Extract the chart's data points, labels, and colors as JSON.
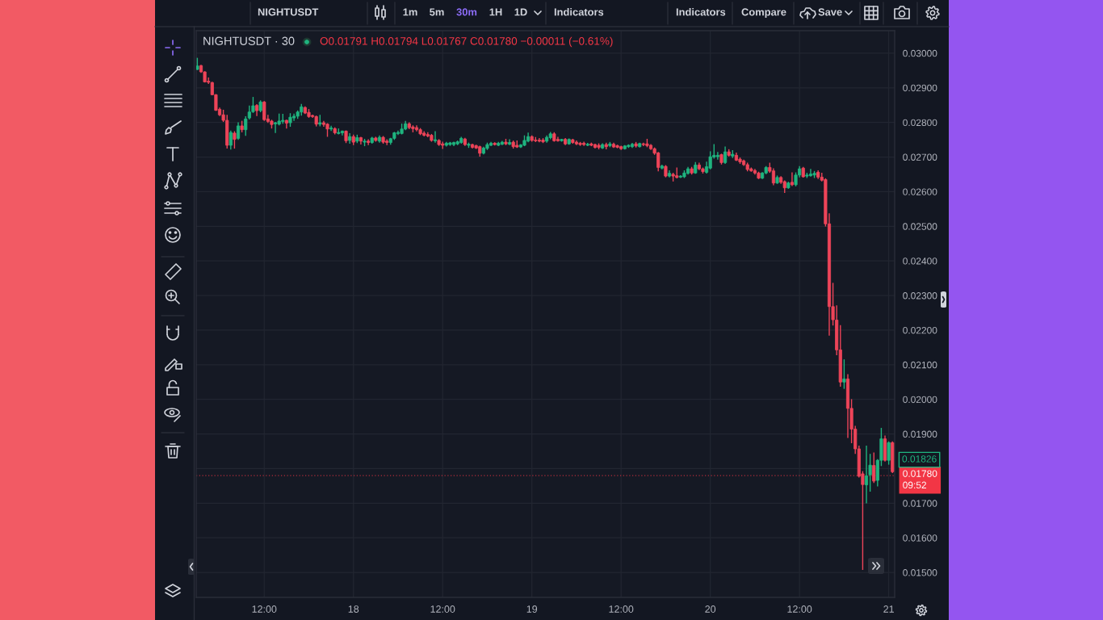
{
  "chart_data": {
    "type": "candlestick",
    "title": "NIGHTUSDT · 30",
    "subtitle": "O0.01791 H0.01794 L0.01767 C0.01780 −0.00011 (−0.61%)",
    "categories": [
      null,
      null,
      null,
      null,
      null,
      null,
      null,
      null,
      null,
      null,
      null,
      null,
      null,
      null,
      null,
      null,
      null,
      null,
      "12:00",
      null,
      null,
      null,
      null,
      null,
      null,
      null,
      null,
      null,
      null,
      null,
      null,
      null,
      null,
      null,
      null,
      null,
      null,
      null,
      null,
      null,
      null,
      null,
      "18",
      null,
      null,
      null,
      null,
      null,
      null,
      null,
      null,
      null,
      null,
      null,
      null,
      null,
      null,
      null,
      null,
      null,
      null,
      null,
      null,
      null,
      null,
      null,
      "12:00",
      null,
      null,
      null,
      null,
      null,
      null,
      null,
      null,
      null,
      null,
      null,
      null,
      null,
      null,
      null,
      null,
      null,
      null,
      null,
      null,
      null,
      null,
      null,
      "19",
      null,
      null,
      null,
      null,
      null,
      null,
      null,
      null,
      null,
      null,
      null,
      null,
      null,
      null,
      null,
      null,
      null,
      null,
      null,
      null,
      null,
      null,
      null,
      "12:00",
      null,
      null,
      null,
      null,
      null,
      null,
      null,
      null,
      null,
      null,
      null,
      null,
      null,
      null,
      null,
      null,
      null,
      null,
      null,
      null,
      null,
      null,
      null,
      "20",
      null,
      null,
      null,
      null,
      null,
      null,
      null,
      null,
      null,
      null,
      null,
      null,
      null,
      null,
      null,
      null,
      null,
      null,
      null,
      null,
      null,
      null,
      null,
      "12:00",
      null,
      null,
      null,
      null,
      null,
      null,
      null,
      null,
      null,
      null,
      null,
      null,
      null,
      null,
      null,
      null,
      null,
      null,
      null,
      null,
      null,
      null,
      null,
      "21",
      null
    ],
    "ohlc": [
      [
        0.02953,
        0.02985,
        0.02953,
        0.02963
      ],
      [
        0.02964,
        0.02965,
        0.02945,
        0.02946
      ],
      [
        0.02946,
        0.02946,
        0.02917,
        0.02917
      ],
      [
        0.02919,
        0.02928,
        0.02913,
        0.02916
      ],
      [
        0.02915,
        0.02916,
        0.0288,
        0.0288
      ],
      [
        0.0288,
        0.0288,
        0.02835,
        0.02835
      ],
      [
        0.02838,
        0.02841,
        0.0282,
        0.02822
      ],
      [
        0.02822,
        0.02835,
        0.02803,
        0.02806
      ],
      [
        0.02806,
        0.0282,
        0.02726,
        0.02734
      ],
      [
        0.02734,
        0.02775,
        0.02723,
        0.02771
      ],
      [
        0.02769,
        0.02773,
        0.02726,
        0.02751
      ],
      [
        0.02754,
        0.02799,
        0.02751,
        0.0279
      ],
      [
        0.0279,
        0.02803,
        0.02773,
        0.02779
      ],
      [
        0.02779,
        0.02816,
        0.02763,
        0.0281
      ],
      [
        0.02813,
        0.02847,
        0.0281,
        0.0283
      ],
      [
        0.02831,
        0.02872,
        0.02829,
        0.02848
      ],
      [
        0.02849,
        0.02851,
        0.0282,
        0.02834
      ],
      [
        0.02834,
        0.02862,
        0.02831,
        0.02859
      ],
      [
        0.02859,
        0.0286,
        0.02806,
        0.02808
      ],
      [
        0.0281,
        0.0282,
        0.028,
        0.02803
      ],
      [
        0.02804,
        0.02806,
        0.02784,
        0.02794
      ],
      [
        0.02796,
        0.028,
        0.02771,
        0.02799
      ],
      [
        0.02795,
        0.02824,
        0.02793,
        0.02804
      ],
      [
        0.02803,
        0.02823,
        0.02798,
        0.02806
      ],
      [
        0.02806,
        0.02806,
        0.02784,
        0.02798
      ],
      [
        0.02799,
        0.02825,
        0.02789,
        0.02815
      ],
      [
        0.02813,
        0.02824,
        0.02806,
        0.02818
      ],
      [
        0.02818,
        0.02833,
        0.02812,
        0.0283
      ],
      [
        0.0283,
        0.02852,
        0.02821,
        0.02845
      ],
      [
        0.02843,
        0.02845,
        0.02826,
        0.02827
      ],
      [
        0.02829,
        0.02837,
        0.02815,
        0.02817
      ],
      [
        0.0282,
        0.02821,
        0.02815,
        0.02817
      ],
      [
        0.02817,
        0.02818,
        0.0279,
        0.02795
      ],
      [
        0.02795,
        0.0282,
        0.0279,
        0.02799
      ],
      [
        0.02799,
        0.02803,
        0.02789,
        0.02794
      ],
      [
        0.02795,
        0.02796,
        0.0276,
        0.02781
      ],
      [
        0.02781,
        0.02789,
        0.02777,
        0.02784
      ],
      [
        0.02782,
        0.02784,
        0.02767,
        0.0277
      ],
      [
        0.02768,
        0.02781,
        0.02767,
        0.02771
      ],
      [
        0.0277,
        0.02775,
        0.02764,
        0.02775
      ],
      [
        0.02775,
        0.02775,
        0.02742,
        0.02747
      ],
      [
        0.02748,
        0.02767,
        0.0274,
        0.02759
      ],
      [
        0.02759,
        0.02763,
        0.02736,
        0.02743
      ],
      [
        0.02746,
        0.02763,
        0.02742,
        0.02756
      ],
      [
        0.02756,
        0.02757,
        0.02738,
        0.02746
      ],
      [
        0.02743,
        0.02751,
        0.02733,
        0.02746
      ],
      [
        0.02746,
        0.0275,
        0.02736,
        0.02742
      ],
      [
        0.02742,
        0.02757,
        0.0274,
        0.02755
      ],
      [
        0.02755,
        0.02757,
        0.02746,
        0.02748
      ],
      [
        0.02746,
        0.02761,
        0.02743,
        0.02757
      ],
      [
        0.02757,
        0.02759,
        0.0274,
        0.02743
      ],
      [
        0.02746,
        0.0275,
        0.02736,
        0.02742
      ],
      [
        0.02742,
        0.02754,
        0.02737,
        0.02753
      ],
      [
        0.02754,
        0.02771,
        0.02751,
        0.0277
      ],
      [
        0.02768,
        0.02775,
        0.02765,
        0.02771
      ],
      [
        0.02768,
        0.02795,
        0.02767,
        0.02781
      ],
      [
        0.02781,
        0.02803,
        0.02779,
        0.02796
      ],
      [
        0.02796,
        0.02799,
        0.02782,
        0.02785
      ],
      [
        0.02787,
        0.0279,
        0.02773,
        0.02782
      ],
      [
        0.02785,
        0.0279,
        0.02776,
        0.02779
      ],
      [
        0.02779,
        0.02782,
        0.02765,
        0.02767
      ],
      [
        0.02769,
        0.02773,
        0.02761,
        0.02763
      ],
      [
        0.02765,
        0.0277,
        0.02759,
        0.02761
      ],
      [
        0.02763,
        0.02765,
        0.02746,
        0.02748
      ],
      [
        0.02747,
        0.02773,
        0.02743,
        0.0275
      ],
      [
        0.02748,
        0.0275,
        0.02734,
        0.02736
      ],
      [
        0.02738,
        0.02743,
        0.02725,
        0.02734
      ],
      [
        0.02734,
        0.02742,
        0.02732,
        0.0274
      ],
      [
        0.02736,
        0.02742,
        0.02734,
        0.02741
      ],
      [
        0.02736,
        0.02743,
        0.02733,
        0.02742
      ],
      [
        0.02738,
        0.02746,
        0.02736,
        0.02744
      ],
      [
        0.02742,
        0.02757,
        0.0274,
        0.02754
      ],
      [
        0.02752,
        0.02754,
        0.02734,
        0.02736
      ],
      [
        0.02734,
        0.0274,
        0.02728,
        0.02737
      ],
      [
        0.02736,
        0.02737,
        0.02726,
        0.02728
      ],
      [
        0.02733,
        0.02734,
        0.02725,
        0.02726
      ],
      [
        0.0273,
        0.02731,
        0.02703,
        0.02711
      ],
      [
        0.02711,
        0.02728,
        0.02709,
        0.02726
      ],
      [
        0.02725,
        0.0274,
        0.02722,
        0.02736
      ],
      [
        0.02734,
        0.02742,
        0.02733,
        0.0274
      ],
      [
        0.0274,
        0.02741,
        0.02735,
        0.02736
      ],
      [
        0.02734,
        0.02742,
        0.02733,
        0.0274
      ],
      [
        0.02737,
        0.02745,
        0.02736,
        0.02743
      ],
      [
        0.02743,
        0.02751,
        0.02736,
        0.02738
      ],
      [
        0.02737,
        0.0275,
        0.02736,
        0.02742
      ],
      [
        0.02743,
        0.02746,
        0.02726,
        0.0273
      ],
      [
        0.02734,
        0.02746,
        0.02728,
        0.02729
      ],
      [
        0.02729,
        0.02736,
        0.02728,
        0.02735
      ],
      [
        0.02734,
        0.02761,
        0.02733,
        0.02748
      ],
      [
        0.02746,
        0.02769,
        0.02744,
        0.02759
      ],
      [
        0.02759,
        0.02761,
        0.02746,
        0.02748
      ],
      [
        0.02749,
        0.02756,
        0.02745,
        0.02747
      ],
      [
        0.02749,
        0.02753,
        0.02744,
        0.02746
      ],
      [
        0.02749,
        0.02753,
        0.02742,
        0.02744
      ],
      [
        0.02746,
        0.02761,
        0.02743,
        0.02757
      ],
      [
        0.02756,
        0.02771,
        0.02753,
        0.02767
      ],
      [
        0.02767,
        0.0277,
        0.02746,
        0.02747
      ],
      [
        0.02751,
        0.02757,
        0.02746,
        0.02747
      ],
      [
        0.02747,
        0.02751,
        0.02746,
        0.02751
      ],
      [
        0.02751,
        0.02753,
        0.02736,
        0.02738
      ],
      [
        0.02738,
        0.02752,
        0.02737,
        0.02751
      ],
      [
        0.0275,
        0.02751,
        0.0274,
        0.02742
      ],
      [
        0.02743,
        0.02746,
        0.02736,
        0.02738
      ],
      [
        0.0274,
        0.02742,
        0.02734,
        0.02736
      ],
      [
        0.0274,
        0.02743,
        0.02734,
        0.02736
      ],
      [
        0.02734,
        0.02739,
        0.02733,
        0.02737
      ],
      [
        0.02738,
        0.0274,
        0.02733,
        0.02734
      ],
      [
        0.02736,
        0.02737,
        0.02726,
        0.02728
      ],
      [
        0.02734,
        0.02738,
        0.02724,
        0.02728
      ],
      [
        0.02726,
        0.02738,
        0.02725,
        0.02736
      ],
      [
        0.02736,
        0.0274,
        0.02724,
        0.0273
      ],
      [
        0.02733,
        0.02742,
        0.0273,
        0.02738
      ],
      [
        0.02737,
        0.0274,
        0.02728,
        0.02729
      ],
      [
        0.02733,
        0.02734,
        0.02727,
        0.02728
      ],
      [
        0.0273,
        0.02731,
        0.02722,
        0.02724
      ],
      [
        0.02724,
        0.02733,
        0.02723,
        0.02732
      ],
      [
        0.0273,
        0.02735,
        0.02728,
        0.02734
      ],
      [
        0.0273,
        0.02739,
        0.02728,
        0.02737
      ],
      [
        0.02738,
        0.02742,
        0.02729,
        0.02732
      ],
      [
        0.0273,
        0.0274,
        0.02729,
        0.02739
      ],
      [
        0.02738,
        0.0274,
        0.02733,
        0.02736
      ],
      [
        0.02738,
        0.02751,
        0.0273,
        0.02733
      ],
      [
        0.02734,
        0.02736,
        0.02722,
        0.02724
      ],
      [
        0.02724,
        0.02726,
        0.02708,
        0.02711
      ],
      [
        0.02712,
        0.02713,
        0.0266,
        0.0267
      ],
      [
        0.02668,
        0.02676,
        0.02666,
        0.02674
      ],
      [
        0.02673,
        0.02675,
        0.02643,
        0.02645
      ],
      [
        0.02645,
        0.0266,
        0.02643,
        0.02653
      ],
      [
        0.0265,
        0.02653,
        0.02631,
        0.02645
      ],
      [
        0.02646,
        0.02668,
        0.0264,
        0.02641
      ],
      [
        0.02642,
        0.02646,
        0.02641,
        0.02645
      ],
      [
        0.02643,
        0.0266,
        0.02641,
        0.02654
      ],
      [
        0.02653,
        0.0267,
        0.02651,
        0.02666
      ],
      [
        0.02666,
        0.0267,
        0.02651,
        0.02654
      ],
      [
        0.02654,
        0.02684,
        0.02653,
        0.02677
      ],
      [
        0.02677,
        0.02682,
        0.02664,
        0.02666
      ],
      [
        0.02666,
        0.02668,
        0.02654,
        0.02658
      ],
      [
        0.02656,
        0.02685,
        0.02654,
        0.02672
      ],
      [
        0.02668,
        0.02715,
        0.02666,
        0.02701
      ],
      [
        0.027,
        0.02736,
        0.02697,
        0.02705
      ],
      [
        0.02701,
        0.02713,
        0.02694,
        0.02705
      ],
      [
        0.02707,
        0.02708,
        0.0268,
        0.02684
      ],
      [
        0.02684,
        0.02729,
        0.02682,
        0.02715
      ],
      [
        0.02715,
        0.02721,
        0.02703,
        0.02705
      ],
      [
        0.02703,
        0.02718,
        0.02699,
        0.02708
      ],
      [
        0.02705,
        0.02711,
        0.0269,
        0.02691
      ],
      [
        0.02694,
        0.02697,
        0.02682,
        0.02686
      ],
      [
        0.02689,
        0.02691,
        0.02676,
        0.02678
      ],
      [
        0.02678,
        0.02682,
        0.0266,
        0.02664
      ],
      [
        0.02666,
        0.02668,
        0.02659,
        0.0266
      ],
      [
        0.02661,
        0.02664,
        0.02651,
        0.02654
      ],
      [
        0.02654,
        0.02656,
        0.02638,
        0.02639
      ],
      [
        0.02639,
        0.02655,
        0.02638,
        0.02654
      ],
      [
        0.02654,
        0.02672,
        0.02652,
        0.0267
      ],
      [
        0.0267,
        0.02682,
        0.02656,
        0.02659
      ],
      [
        0.0266,
        0.02666,
        0.0262,
        0.02625
      ],
      [
        0.02625,
        0.02645,
        0.02624,
        0.02641
      ],
      [
        0.02641,
        0.02643,
        0.02624,
        0.02627
      ],
      [
        0.02629,
        0.02631,
        0.02598,
        0.02611
      ],
      [
        0.02611,
        0.02627,
        0.0261,
        0.02625
      ],
      [
        0.02627,
        0.02654,
        0.02618,
        0.0262
      ],
      [
        0.0262,
        0.02654,
        0.02617,
        0.02648
      ],
      [
        0.02648,
        0.02672,
        0.02643,
        0.02666
      ],
      [
        0.02668,
        0.0267,
        0.02642,
        0.02643
      ],
      [
        0.02645,
        0.02653,
        0.02641,
        0.02648
      ],
      [
        0.02646,
        0.02664,
        0.02645,
        0.02651
      ],
      [
        0.02648,
        0.02658,
        0.02641,
        0.02653
      ],
      [
        0.02656,
        0.0266,
        0.02638,
        0.02642
      ],
      [
        0.02642,
        0.02653,
        0.02631,
        0.02633
      ],
      [
        0.02635,
        0.02637,
        0.02501,
        0.02507
      ],
      [
        0.02507,
        0.02536,
        0.02186,
        0.02268
      ],
      [
        0.02268,
        0.02335,
        0.02215,
        0.0223
      ],
      [
        0.02229,
        0.0227,
        0.02129,
        0.02143
      ],
      [
        0.02143,
        0.02213,
        0.02038,
        0.0205
      ],
      [
        0.0205,
        0.02114,
        0.02032,
        0.02059
      ],
      [
        0.02059,
        0.02071,
        0.0189,
        0.01974
      ],
      [
        0.01974,
        0.01999,
        0.01875,
        0.01914
      ],
      [
        0.01914,
        0.01922,
        0.01844,
        0.01857
      ],
      [
        0.01857,
        0.01865,
        0.01776,
        0.01778
      ],
      [
        0.01785,
        0.01791,
        0.01509,
        0.01754
      ],
      [
        0.01753,
        0.01865,
        0.01701,
        0.01779
      ],
      [
        0.01782,
        0.01841,
        0.01735,
        0.0181
      ],
      [
        0.01809,
        0.01845,
        0.0176,
        0.01764
      ],
      [
        0.01766,
        0.01826,
        0.0175,
        0.01824
      ],
      [
        0.01824,
        0.01916,
        0.01809,
        0.01886
      ],
      [
        0.01886,
        0.01894,
        0.01822,
        0.01824
      ],
      [
        0.01824,
        0.01877,
        0.01813,
        0.01875
      ],
      [
        0.01875,
        0.01877,
        0.01789,
        0.01791
      ]
    ],
    "colors": [
      "#1fb47f",
      "#ee4459",
      "#ee4459",
      "#ee4459",
      "#ee4459",
      "#ee4459",
      "#ee4459",
      "#ee4459",
      "#ee4459",
      "#1fb47f",
      "#ee4459",
      "#1fb47f",
      "#ee4459",
      "#1fb47f",
      "#1fb47f",
      "#1fb47f",
      "#ee4459",
      "#1fb47f",
      "#ee4459",
      "#ee4459",
      "#ee4459",
      "#1fb47f",
      "#1fb47f",
      "#1fb47f",
      "#ee4459",
      "#1fb47f",
      "#1fb47f",
      "#1fb47f",
      "#1fb47f",
      "#ee4459",
      "#ee4459",
      "#ee4459",
      "#ee4459",
      "#1fb47f",
      "#ee4459",
      "#ee4459",
      "#1fb47f",
      "#ee4459",
      "#1fb47f",
      "#1fb47f",
      "#ee4459",
      "#1fb47f",
      "#ee4459",
      "#1fb47f",
      "#ee4459",
      "#1fb47f",
      "#ee4459",
      "#1fb47f",
      "#ee4459",
      "#1fb47f",
      "#ee4459",
      "#ee4459",
      "#1fb47f",
      "#1fb47f",
      "#1fb47f",
      "#1fb47f",
      "#1fb47f",
      "#ee4459",
      "#ee4459",
      "#ee4459",
      "#ee4459",
      "#ee4459",
      "#ee4459",
      "#ee4459",
      "#1fb47f",
      "#ee4459",
      "#ee4459",
      "#1fb47f",
      "#1fb47f",
      "#1fb47f",
      "#1fb47f",
      "#1fb47f",
      "#ee4459",
      "#1fb47f",
      "#ee4459",
      "#ee4459",
      "#ee4459",
      "#1fb47f",
      "#1fb47f",
      "#1fb47f",
      "#ee4459",
      "#1fb47f",
      "#1fb47f",
      "#ee4459",
      "#1fb47f",
      "#ee4459",
      "#ee4459",
      "#1fb47f",
      "#1fb47f",
      "#1fb47f",
      "#ee4459",
      "#ee4459",
      "#ee4459",
      "#ee4459",
      "#1fb47f",
      "#1fb47f",
      "#ee4459",
      "#ee4459",
      "#1fb47f",
      "#ee4459",
      "#1fb47f",
      "#ee4459",
      "#ee4459",
      "#ee4459",
      "#ee4459",
      "#1fb47f",
      "#ee4459",
      "#ee4459",
      "#ee4459",
      "#1fb47f",
      "#ee4459",
      "#1fb47f",
      "#ee4459",
      "#ee4459",
      "#ee4459",
      "#1fb47f",
      "#1fb47f",
      "#1fb47f",
      "#ee4459",
      "#1fb47f",
      "#ee4459",
      "#ee4459",
      "#ee4459",
      "#ee4459",
      "#ee4459",
      "#1fb47f",
      "#ee4459",
      "#1fb47f",
      "#ee4459",
      "#ee4459",
      "#1fb47f",
      "#1fb47f",
      "#1fb47f",
      "#ee4459",
      "#1fb47f",
      "#ee4459",
      "#ee4459",
      "#1fb47f",
      "#1fb47f",
      "#1fb47f",
      "#1fb47f",
      "#ee4459",
      "#1fb47f",
      "#ee4459",
      "#1fb47f",
      "#ee4459",
      "#ee4459",
      "#ee4459",
      "#ee4459",
      "#ee4459",
      "#ee4459",
      "#ee4459",
      "#1fb47f",
      "#1fb47f",
      "#ee4459",
      "#ee4459",
      "#1fb47f",
      "#ee4459",
      "#ee4459",
      "#1fb47f",
      "#ee4459",
      "#1fb47f",
      "#1fb47f",
      "#ee4459",
      "#1fb47f",
      "#1fb47f",
      "#1fb47f",
      "#ee4459",
      "#ee4459",
      "#ee4459",
      "#ee4459",
      "#ee4459",
      "#ee4459",
      "#ee4459",
      "#1fb47f",
      "#ee4459",
      "#ee4459",
      "#ee4459",
      "#ee4459",
      "#ee4459",
      "#1fb47f",
      "#1fb47f",
      "#ee4459",
      "#1fb47f",
      "#1fb47f",
      "#ee4459",
      "#1fb47f",
      "#ee4459"
    ],
    "ylim": [
      0.01428,
      0.03065
    ],
    "yticks": [
      {
        "value": 0.015,
        "label": "0.01500"
      },
      {
        "value": 0.016,
        "label": "0.01600"
      },
      {
        "value": 0.017,
        "label": "0.01700"
      },
      {
        "value": 0.018,
        "label": null
      },
      {
        "value": 0.019,
        "label": "0.01900"
      },
      {
        "value": 0.02,
        "label": "0.02000"
      },
      {
        "value": 0.021,
        "label": "0.02100"
      },
      {
        "value": 0.022,
        "label": "0.02200"
      },
      {
        "value": 0.023,
        "label": "0.02300"
      },
      {
        "value": 0.024,
        "label": "0.02400"
      },
      {
        "value": 0.025,
        "label": "0.02500"
      },
      {
        "value": 0.026,
        "label": "0.02600"
      },
      {
        "value": 0.027,
        "label": "0.02700"
      },
      {
        "value": 0.028,
        "label": "0.02800"
      },
      {
        "value": 0.029,
        "label": "0.02900"
      },
      {
        "value": 0.03,
        "label": "0.03000"
      }
    ],
    "grid": true,
    "ref_lines": [
      {
        "axis": "y",
        "value": 0.0178,
        "label": "0.01780\n09:52",
        "color": "#f23645",
        "line_style": "dotted"
      }
    ],
    "annotations": [
      "NIGHTUSDT",
      "1m",
      "5m",
      "30m",
      "1H",
      "1D",
      "Indicators",
      "Indicators",
      "Compare",
      "Save",
      "0.01826"
    ]
  }
}
